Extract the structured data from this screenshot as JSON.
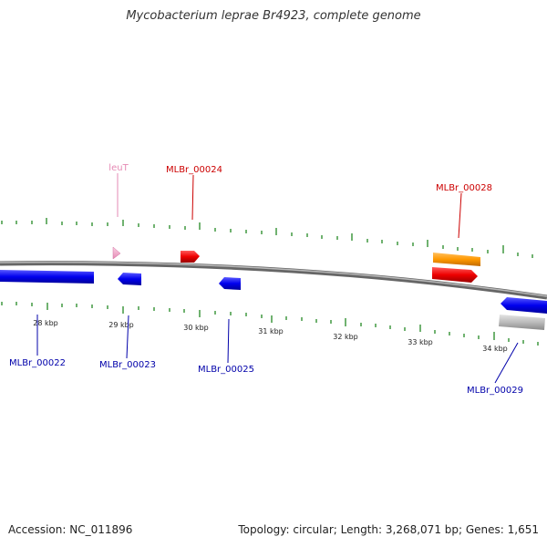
{
  "title": "Mycobacterium leprae Br4923, complete genome",
  "footer": {
    "accession": "Accession: NC_011896",
    "stats": "Topology: circular; Length: 3,268,071 bp; Genes: 1,651"
  },
  "colors": {
    "forward_cds": "#ee0000",
    "reverse_cds": "#0000ee",
    "trna": "#f4a6c8",
    "orange_feature": "#ff9900",
    "gray_feature": "#bbbbbb",
    "ticks": "#228822",
    "backbone": "#777777"
  },
  "scale": {
    "unit": "kbp",
    "labels": [
      "28 kbp",
      "29 kbp",
      "30 kbp",
      "31 kbp",
      "32 kbp",
      "33 kbp",
      "34 kbp"
    ]
  },
  "features": {
    "leuT": "leuT",
    "MLBr_00022": "MLBr_00022",
    "MLBr_00023": "MLBr_00023",
    "MLBr_00024": "MLBr_00024",
    "MLBr_00025": "MLBr_00025",
    "MLBr_00028": "MLBr_00028",
    "MLBr_00029": "MLBr_00029"
  }
}
